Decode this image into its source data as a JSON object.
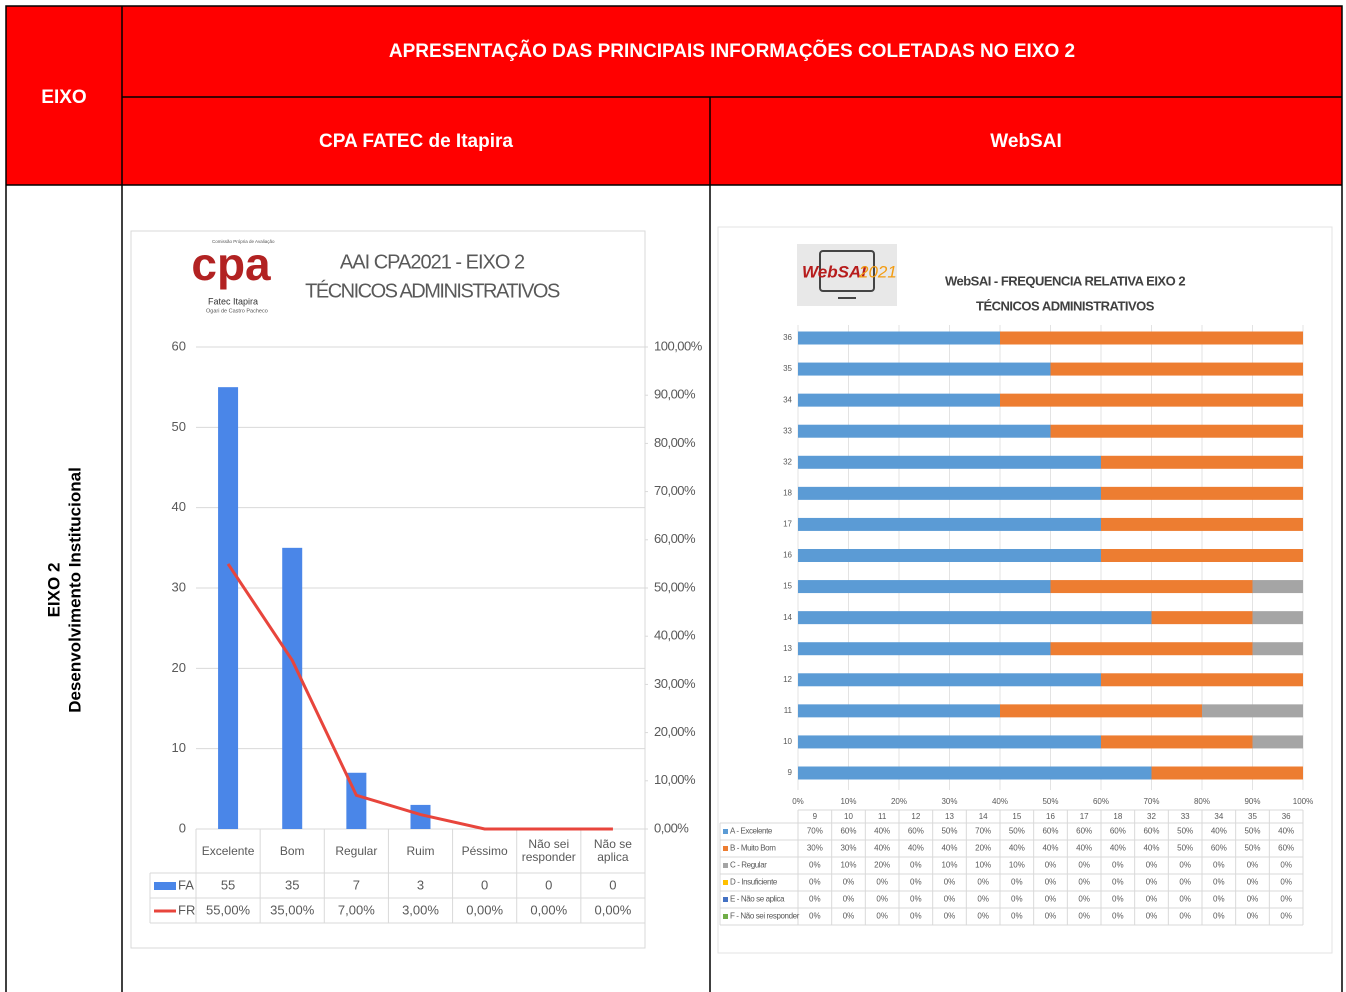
{
  "table": {
    "header": {
      "eixo": "EIXO",
      "title": "APRESENTAÇÃO DAS PRINCIPAIS INFORMAÇÕES COLETADAS NO EIXO 2",
      "columns": [
        "CPA FATEC de Itapira",
        "WebSAI"
      ]
    },
    "rows": [
      {
        "eixo": "EIXO 2",
        "name": "Desenvolvimento Institucional"
      }
    ]
  },
  "chart_data": [
    {
      "type": "combo",
      "logo": {
        "mark": "cpa",
        "top": "Comissão Própria de Avaliação",
        "name": "Fatec Itapira",
        "sub": "Ogari de Castro Pacheco"
      },
      "title": "AAI CPA2021 - EIXO 2",
      "subtitle": "TÉCNICOS ADMINISTRATIVOS",
      "categories": [
        "Excelente",
        "Bom",
        "Regular",
        "Ruim",
        "Péssimo",
        "Não sei responder",
        "Não se aplica"
      ],
      "series": [
        {
          "name": "FA",
          "type": "bar",
          "color": "#4a86e8",
          "values": [
            55,
            35,
            7,
            3,
            0,
            0,
            0
          ]
        },
        {
          "name": "FR",
          "type": "line",
          "axis": "y2",
          "color": "#e8453c",
          "values": [
            55,
            35,
            7,
            3,
            0,
            0,
            0
          ],
          "value_labels": [
            "55,00%",
            "35,00%",
            "7,00%",
            "3,00%",
            "0,00%",
            "0,00%",
            "0,00%"
          ]
        }
      ],
      "ylim": [
        0,
        60
      ],
      "yticks": [
        0,
        10,
        20,
        30,
        40,
        50,
        60
      ],
      "y2lim": [
        0,
        100
      ],
      "y2ticks": [
        {
          "value": 0,
          "label": "0,00%"
        },
        {
          "value": 10,
          "label": "10,00%"
        },
        {
          "value": 20,
          "label": "20,00%"
        },
        {
          "value": 30,
          "label": "30,00%"
        },
        {
          "value": 40,
          "label": "40,00%"
        },
        {
          "value": 50,
          "label": "50,00%"
        },
        {
          "value": 60,
          "label": "60,00%"
        },
        {
          "value": 70,
          "label": "70,00%"
        },
        {
          "value": 80,
          "label": "80,00%"
        },
        {
          "value": 90,
          "label": "90,00%"
        },
        {
          "value": 100,
          "label": "100,00%"
        }
      ],
      "grid": true
    },
    {
      "type": "bar",
      "orientation": "horizontal",
      "stacked": true,
      "logo": [
        "WebSAI",
        "2021"
      ],
      "title": "WebSAI - FREQUENCIA RELATIVA EIXO 2",
      "subtitle": "TÉCNICOS ADMINISTRATIVOS",
      "categories": [
        "9",
        "10",
        "11",
        "12",
        "13",
        "14",
        "15",
        "16",
        "17",
        "18",
        "32",
        "33",
        "34",
        "35",
        "36"
      ],
      "series": [
        {
          "name": "A - Excelente",
          "color": "#5b9bd5",
          "values": [
            70,
            60,
            40,
            60,
            50,
            70,
            50,
            60,
            60,
            60,
            60,
            50,
            40,
            50,
            40
          ],
          "value_labels": [
            "70%",
            "60%",
            "40%",
            "60%",
            "50%",
            "70%",
            "50%",
            "60%",
            "60%",
            "60%",
            "60%",
            "50%",
            "40%",
            "50%",
            "40%"
          ]
        },
        {
          "name": "B - Muito Bom",
          "color": "#ed7d31",
          "values": [
            30,
            30,
            40,
            40,
            40,
            20,
            40,
            40,
            40,
            40,
            40,
            50,
            60,
            50,
            60
          ],
          "value_labels": [
            "30%",
            "30%",
            "40%",
            "40%",
            "40%",
            "20%",
            "40%",
            "40%",
            "40%",
            "40%",
            "40%",
            "50%",
            "60%",
            "50%",
            "60%"
          ]
        },
        {
          "name": "C - Regular",
          "color": "#a5a5a5",
          "values": [
            0,
            10,
            20,
            0,
            10,
            10,
            10,
            0,
            0,
            0,
            0,
            0,
            0,
            0,
            0
          ],
          "value_labels": [
            "0%",
            "10%",
            "20%",
            "0%",
            "10%",
            "10%",
            "10%",
            "0%",
            "0%",
            "0%",
            "0%",
            "0%",
            "0%",
            "0%",
            "0%"
          ]
        },
        {
          "name": "D - Insuficiente",
          "color": "#ffc000",
          "values": [
            0,
            0,
            0,
            0,
            0,
            0,
            0,
            0,
            0,
            0,
            0,
            0,
            0,
            0,
            0
          ],
          "value_labels": [
            "0%",
            "0%",
            "0%",
            "0%",
            "0%",
            "0%",
            "0%",
            "0%",
            "0%",
            "0%",
            "0%",
            "0%",
            "0%",
            "0%",
            "0%"
          ]
        },
        {
          "name": "E - Não se aplica",
          "color": "#4472c4",
          "values": [
            0,
            0,
            0,
            0,
            0,
            0,
            0,
            0,
            0,
            0,
            0,
            0,
            0,
            0,
            0
          ],
          "value_labels": [
            "0%",
            "0%",
            "0%",
            "0%",
            "0%",
            "0%",
            "0%",
            "0%",
            "0%",
            "0%",
            "0%",
            "0%",
            "0%",
            "0%",
            "0%"
          ]
        },
        {
          "name": "F - Não sei responder",
          "color": "#70ad47",
          "values": [
            0,
            0,
            0,
            0,
            0,
            0,
            0,
            0,
            0,
            0,
            0,
            0,
            0,
            0,
            0
          ],
          "value_labels": [
            "0%",
            "0%",
            "0%",
            "0%",
            "0%",
            "0%",
            "0%",
            "0%",
            "0%",
            "0%",
            "0%",
            "0%",
            "0%",
            "0%",
            "0%"
          ]
        }
      ],
      "xlim": [
        0,
        100
      ],
      "xticks": [
        {
          "value": 0,
          "label": "0%"
        },
        {
          "value": 10,
          "label": "10%"
        },
        {
          "value": 20,
          "label": "20%"
        },
        {
          "value": 30,
          "label": "30%"
        },
        {
          "value": 40,
          "label": "40%"
        },
        {
          "value": 50,
          "label": "50%"
        },
        {
          "value": 60,
          "label": "60%"
        },
        {
          "value": 70,
          "label": "70%"
        },
        {
          "value": 80,
          "label": "80%"
        },
        {
          "value": 90,
          "label": "90%"
        },
        {
          "value": 100,
          "label": "100%"
        }
      ],
      "grid": true
    }
  ]
}
